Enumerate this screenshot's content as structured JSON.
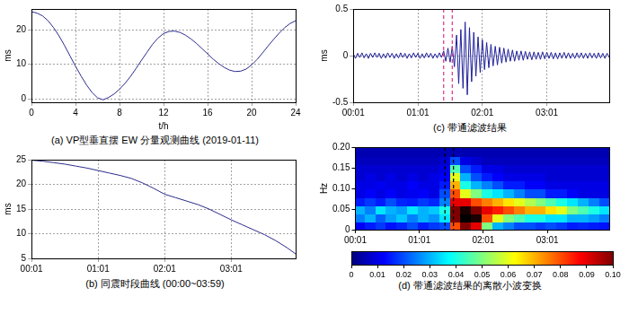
{
  "chart_data": [
    {
      "type": "line",
      "title": "(a) VP型垂直摆 EW 分量观测曲线 (2019-01-11)",
      "xlabel": "t/h",
      "ylabel": "ms",
      "color": "#2b2b8c",
      "grid": true,
      "xlim": [
        0,
        24
      ],
      "xticks": [
        0,
        4,
        8,
        12,
        16,
        20,
        24
      ],
      "ylim": [
        -1,
        26
      ],
      "yticks": [
        0,
        10,
        20
      ],
      "x": [
        0,
        0.5,
        1,
        1.5,
        2,
        2.5,
        3,
        3.5,
        4,
        4.5,
        5,
        5.5,
        6,
        6.5,
        7,
        7.5,
        8,
        8.5,
        9,
        9.5,
        10,
        10.5,
        11,
        11.5,
        12,
        12.5,
        13,
        13.5,
        14,
        14.5,
        15,
        15.5,
        16,
        16.5,
        17,
        17.5,
        18,
        18.5,
        19,
        19.5,
        20,
        20.5,
        21,
        21.5,
        22,
        22.5,
        23,
        23.5,
        24
      ],
      "values": [
        25.2,
        24.8,
        24.0,
        22.6,
        20.6,
        18.2,
        15.4,
        12.4,
        9.4,
        6.6,
        4.0,
        1.8,
        0.3,
        -0.3,
        0.4,
        1.4,
        2.8,
        4.5,
        6.5,
        8.8,
        11.2,
        13.5,
        15.8,
        17.6,
        18.9,
        19.5,
        19.6,
        19.2,
        18.4,
        17.3,
        16.0,
        14.5,
        13.0,
        11.5,
        10.2,
        9.1,
        8.3,
        7.9,
        8.0,
        8.6,
        9.8,
        11.4,
        13.3,
        15.3,
        17.2,
        19.0,
        20.6,
        21.8,
        22.6
      ]
    },
    {
      "type": "line",
      "title": "(b) 同震时段曲线 (00:00~03:59)",
      "ylabel": "ms",
      "color": "#2b2b8c",
      "grid": true,
      "xlim": [
        1,
        239
      ],
      "xticks": [
        {
          "value": 1,
          "label": "00:01"
        },
        {
          "value": 61,
          "label": "01:01"
        },
        {
          "value": 121,
          "label": "02:01"
        },
        {
          "value": 181,
          "label": "03:01"
        }
      ],
      "ylim": [
        5,
        25
      ],
      "yticks": [
        5,
        10,
        15,
        20,
        25
      ],
      "x": [
        1,
        11,
        21,
        31,
        41,
        51,
        61,
        71,
        81,
        91,
        101,
        111,
        121,
        131,
        141,
        151,
        161,
        171,
        181,
        191,
        201,
        211,
        221,
        231,
        239
      ],
      "values": [
        24.9,
        24.7,
        24.4,
        24.1,
        23.7,
        23.3,
        22.8,
        22.3,
        21.8,
        21.2,
        20.3,
        19.2,
        18.0,
        17.3,
        16.6,
        15.9,
        15.0,
        13.9,
        12.8,
        11.8,
        10.8,
        9.8,
        8.6,
        7.2,
        5.9
      ]
    },
    {
      "type": "line",
      "title": "(c) 带通滤波结果",
      "ylabel": "ms",
      "color": "#1f1f9a",
      "grid": true,
      "xlim": [
        1,
        239
      ],
      "xticks": [
        {
          "value": 1,
          "label": "00:01"
        },
        {
          "value": 61,
          "label": "01:01"
        },
        {
          "value": 121,
          "label": "02:01"
        },
        {
          "value": 181,
          "label": "03:01"
        }
      ],
      "ylim": [
        -0.5,
        0.5
      ],
      "yticks": [
        -0.5,
        0,
        0.5
      ],
      "vlines": {
        "x": [
          85,
          93
        ],
        "color": "#e0308a",
        "line_style": "dashed"
      },
      "x": [
        1,
        3,
        5,
        7,
        9,
        11,
        13,
        15,
        17,
        19,
        21,
        23,
        25,
        27,
        29,
        31,
        33,
        35,
        37,
        39,
        41,
        43,
        45,
        47,
        49,
        51,
        53,
        55,
        57,
        59,
        61,
        63,
        65,
        67,
        69,
        71,
        73,
        75,
        77,
        79,
        81,
        83,
        85,
        87,
        89,
        91,
        93,
        95,
        97,
        99,
        101,
        103,
        105,
        107,
        109,
        111,
        113,
        115,
        117,
        119,
        121,
        123,
        125,
        127,
        129,
        131,
        133,
        135,
        137,
        139,
        141,
        143,
        145,
        147,
        149,
        151,
        153,
        155,
        157,
        159,
        161,
        163,
        165,
        167,
        169,
        171,
        173,
        175,
        177,
        179,
        181,
        183,
        185,
        187,
        189,
        191,
        193,
        195,
        197,
        199,
        201,
        203,
        205,
        207,
        209,
        211,
        213,
        215,
        217,
        219,
        221,
        223,
        225,
        227,
        229,
        231,
        233,
        235,
        237,
        239
      ],
      "values": [
        0.02,
        -0.03,
        0.025,
        -0.02,
        0.03,
        -0.025,
        0.02,
        -0.03,
        0.025,
        -0.02,
        0.03,
        -0.02,
        0.025,
        -0.03,
        0.02,
        -0.025,
        0.03,
        -0.02,
        0.025,
        -0.03,
        0.02,
        -0.025,
        0.03,
        -0.02,
        0.025,
        -0.03,
        0.02,
        -0.025,
        0.03,
        -0.02,
        0.025,
        -0.03,
        0.02,
        -0.025,
        0.03,
        -0.02,
        0.025,
        -0.03,
        0.02,
        -0.025,
        0.03,
        -0.02,
        0.05,
        -0.06,
        0.08,
        -0.07,
        0.1,
        -0.12,
        0.22,
        -0.3,
        0.28,
        -0.35,
        0.36,
        -0.42,
        0.3,
        -0.28,
        0.25,
        -0.22,
        0.2,
        -0.18,
        0.17,
        -0.15,
        0.14,
        -0.13,
        0.12,
        -0.11,
        0.1,
        -0.1,
        0.09,
        -0.08,
        0.08,
        -0.07,
        0.07,
        -0.06,
        0.06,
        -0.06,
        0.05,
        -0.05,
        0.05,
        -0.05,
        0.045,
        -0.04,
        0.04,
        -0.045,
        0.04,
        -0.04,
        0.035,
        -0.04,
        0.04,
        -0.035,
        0.035,
        -0.03,
        0.035,
        -0.035,
        0.03,
        -0.035,
        0.03,
        -0.03,
        0.035,
        -0.03,
        0.03,
        -0.03,
        0.025,
        -0.03,
        0.03,
        -0.025,
        0.03,
        -0.03,
        0.025,
        -0.03,
        0.03,
        -0.025,
        0.025,
        -0.03,
        0.03,
        -0.025,
        0.025,
        -0.03,
        0.025,
        -0.02
      ]
    },
    {
      "type": "heatmap",
      "title": "(d) 带通滤波结果的离散小波变换",
      "ylabel": "Hz",
      "grid": false,
      "xlim": [
        1,
        239
      ],
      "xticks": [
        {
          "value": 1,
          "label": "00:01"
        },
        {
          "value": 61,
          "label": "01:01"
        },
        {
          "value": 121,
          "label": "02:01"
        },
        {
          "value": 181,
          "label": "03:01"
        }
      ],
      "ylim": [
        0,
        0.2
      ],
      "yticks": [
        0,
        0.05,
        {
          "value": 0.1,
          "label": "0.10"
        },
        0.15,
        {
          "value": 0.2,
          "label": "0.20"
        }
      ],
      "vlines": {
        "x": [
          85,
          93
        ],
        "color": "#000000",
        "line_style": "dashed"
      },
      "x_bins": [
        0,
        10,
        20,
        30,
        40,
        50,
        60,
        70,
        80,
        90,
        100,
        110,
        120,
        130,
        140,
        150,
        160,
        170,
        180,
        190,
        200,
        210,
        220,
        230,
        240
      ],
      "y_bins": [
        0,
        0.02,
        0.04,
        0.06,
        0.08,
        0.1,
        0.12,
        0.14,
        0.16,
        0.18,
        0.2
      ],
      "cells": [
        [
          0.012,
          0.015,
          0.018,
          0.014,
          0.016,
          0.02,
          0.015,
          0.018,
          0.02,
          0.08,
          0.1,
          0.09,
          0.05,
          0.03,
          0.025,
          0.02,
          0.02,
          0.018,
          0.02,
          0.018,
          0.015,
          0.016,
          0.015,
          0.014
        ],
        [
          0.025,
          0.03,
          0.022,
          0.028,
          0.032,
          0.025,
          0.03,
          0.027,
          0.035,
          0.1,
          0.12,
          0.11,
          0.08,
          0.06,
          0.05,
          0.045,
          0.04,
          0.04,
          0.035,
          0.035,
          0.03,
          0.03,
          0.028,
          0.025
        ],
        [
          0.03,
          0.025,
          0.035,
          0.03,
          0.028,
          0.035,
          0.03,
          0.032,
          0.04,
          0.1,
          0.11,
          0.1,
          0.09,
          0.085,
          0.08,
          0.075,
          0.07,
          0.07,
          0.065,
          0.06,
          0.05,
          0.045,
          0.04,
          0.035
        ],
        [
          0.015,
          0.018,
          0.015,
          0.02,
          0.016,
          0.015,
          0.018,
          0.016,
          0.025,
          0.09,
          0.09,
          0.08,
          0.075,
          0.07,
          0.065,
          0.06,
          0.055,
          0.05,
          0.045,
          0.04,
          0.035,
          0.03,
          0.025,
          0.02
        ],
        [
          0.01,
          0.012,
          0.01,
          0.012,
          0.01,
          0.011,
          0.012,
          0.01,
          0.02,
          0.08,
          0.06,
          0.05,
          0.04,
          0.035,
          0.03,
          0.025,
          0.02,
          0.02,
          0.015,
          0.015,
          0.012,
          0.01,
          0.01,
          0.01
        ],
        [
          0.01,
          0.01,
          0.011,
          0.01,
          0.01,
          0.012,
          0.01,
          0.01,
          0.015,
          0.07,
          0.04,
          0.03,
          0.025,
          0.02,
          0.015,
          0.015,
          0.012,
          0.012,
          0.01,
          0.01,
          0.01,
          0.01,
          0.01,
          0.01
        ],
        [
          0.008,
          0.01,
          0.008,
          0.01,
          0.008,
          0.01,
          0.008,
          0.01,
          0.012,
          0.06,
          0.03,
          0.02,
          0.015,
          0.012,
          0.01,
          0.01,
          0.01,
          0.01,
          0.008,
          0.008,
          0.008,
          0.008,
          0.008,
          0.008
        ],
        [
          0.008,
          0.008,
          0.008,
          0.008,
          0.008,
          0.008,
          0.008,
          0.008,
          0.01,
          0.045,
          0.02,
          0.015,
          0.01,
          0.01,
          0.008,
          0.008,
          0.008,
          0.008,
          0.008,
          0.008,
          0.008,
          0.008,
          0.008,
          0.008
        ],
        [
          0.006,
          0.006,
          0.006,
          0.006,
          0.006,
          0.006,
          0.006,
          0.006,
          0.008,
          0.02,
          0.01,
          0.008,
          0.006,
          0.006,
          0.006,
          0.006,
          0.006,
          0.006,
          0.006,
          0.006,
          0.006,
          0.006,
          0.006,
          0.006
        ],
        [
          0.005,
          0.005,
          0.005,
          0.005,
          0.005,
          0.005,
          0.005,
          0.005,
          0.005,
          0.005,
          0.005,
          0.005,
          0.005,
          0.005,
          0.005,
          0.005,
          0.005,
          0.005,
          0.005,
          0.005,
          0.005,
          0.005,
          0.005,
          0.005
        ]
      ],
      "colorbar_range": [
        0,
        0.1
      ],
      "colorbar_ticks": [
        0,
        0.01,
        0.02,
        0.03,
        0.04,
        0.05,
        0.06,
        0.07,
        0.08,
        0.09,
        {
          "value": 0.1,
          "label": "0.10"
        }
      ]
    }
  ]
}
